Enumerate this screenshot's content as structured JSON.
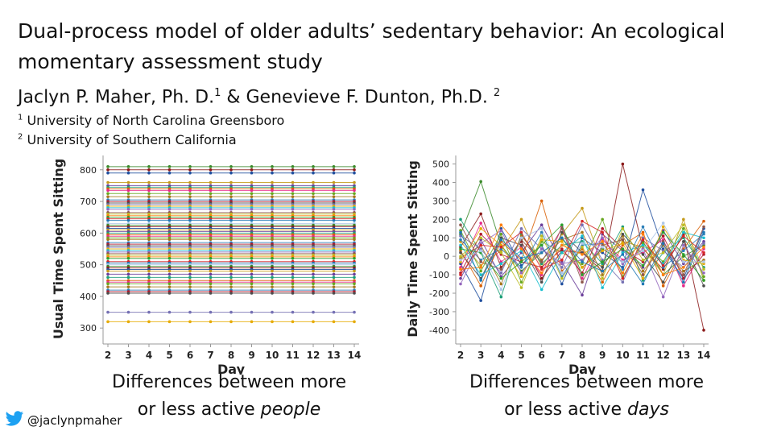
{
  "slide": {
    "title": "Dual-process model of older adults’ sedentary behavior: An ecological momentary assessment study",
    "authors": {
      "author1": "Jaclyn P. Maher, Ph. D.",
      "sup1": "1",
      "separator": " & ",
      "author2": "Genevieve F. Dunton, Ph.D.",
      "sup2": "2"
    },
    "affiliations": [
      {
        "sup": "1",
        "text": "University of North Carolina Greensboro"
      },
      {
        "sup": "2",
        "text": "University of Southern California"
      }
    ],
    "captions": {
      "left_line1": "Differences between more",
      "left_line2_pre": "or less active ",
      "left_line2_em": "people",
      "right_line1": "Differences between more",
      "right_line2_pre": "or less active ",
      "right_line2_em": "days"
    },
    "twitter_handle": "@jaclynpmaher",
    "icons": {
      "twitter": "twitter-bird-icon"
    },
    "colors": {
      "twitter": "#1da1f2"
    }
  },
  "chart_data": [
    {
      "type": "line",
      "xlabel": "Day",
      "ylabel": "Usual Time Spent Sitting",
      "x": [
        2,
        3,
        4,
        5,
        6,
        7,
        8,
        9,
        10,
        11,
        12,
        13,
        14
      ],
      "yticks": [
        300,
        400,
        500,
        600,
        700,
        800
      ],
      "ylim": [
        270,
        830
      ],
      "grid": false,
      "series_levels": [
        810,
        800,
        790,
        760,
        750,
        745,
        740,
        735,
        725,
        715,
        705,
        700,
        695,
        690,
        685,
        680,
        675,
        665,
        660,
        655,
        650,
        645,
        640,
        630,
        625,
        620,
        615,
        610,
        605,
        600,
        595,
        590,
        585,
        580,
        570,
        565,
        560,
        555,
        550,
        545,
        540,
        535,
        530,
        525,
        520,
        510,
        505,
        500,
        495,
        490,
        485,
        480,
        470,
        460,
        450,
        445,
        440,
        430,
        420,
        415,
        410,
        350,
        320
      ],
      "note": "each series is constant across days"
    },
    {
      "type": "line",
      "xlabel": "Day",
      "ylabel": "Daily Time Spent Sitting",
      "x": [
        2,
        3,
        4,
        5,
        6,
        7,
        8,
        9,
        10,
        11,
        12,
        13,
        14
      ],
      "yticks": [
        -400,
        -300,
        -200,
        -100,
        0,
        100,
        200,
        300,
        400,
        500
      ],
      "ylim": [
        -440,
        520
      ],
      "grid": false,
      "series": [
        {
          "values": [
            120,
            405,
            60,
            -80,
            20,
            100,
            -60,
            40,
            -30,
            80,
            -100,
            0,
            60
          ]
        },
        {
          "values": [
            50,
            230,
            -60,
            80,
            -120,
            30,
            20,
            -80,
            500,
            40,
            -70,
            120,
            -400
          ]
        },
        {
          "values": [
            -40,
            -240,
            150,
            -50,
            60,
            -150,
            100,
            20,
            -60,
            360,
            40,
            -120,
            150
          ]
        },
        {
          "values": [
            80,
            -50,
            30,
            200,
            -60,
            120,
            260,
            -50,
            80,
            50,
            -100,
            200,
            -130
          ]
        },
        {
          "values": [
            -120,
            90,
            -110,
            20,
            170,
            -30,
            -210,
            120,
            30,
            -60,
            140,
            -40,
            80
          ]
        },
        {
          "values": [
            200,
            20,
            -220,
            120,
            -40,
            60,
            80,
            -40,
            160,
            -130,
            20,
            100,
            -60
          ]
        },
        {
          "values": [
            30,
            -160,
            80,
            -20,
            300,
            -80,
            40,
            -140,
            60,
            130,
            -160,
            40,
            190
          ]
        },
        {
          "values": [
            -60,
            180,
            -30,
            50,
            -100,
            160,
            -120,
            90,
            -20,
            20,
            90,
            -160,
            40
          ]
        },
        {
          "values": [
            140,
            -80,
            120,
            -140,
            80,
            20,
            -40,
            200,
            -110,
            70,
            -30,
            150,
            -110
          ]
        },
        {
          "values": [
            -10,
            60,
            -150,
            110,
            -20,
            90,
            130,
            -100,
            110,
            -80,
            60,
            -80,
            -20
          ]
        },
        {
          "values": [
            90,
            -20,
            40,
            -60,
            130,
            -110,
            60,
            70,
            -70,
            160,
            -60,
            30,
            120
          ]
        },
        {
          "values": [
            -90,
            120,
            10,
            -30,
            -60,
            40,
            -90,
            150,
            40,
            -30,
            110,
            -120,
            10
          ]
        },
        {
          "values": [
            20,
            -120,
            100,
            60,
            -140,
            130,
            20,
            -60,
            120,
            10,
            -140,
            80,
            -160
          ]
        },
        {
          "values": [
            110,
            40,
            -90,
            150,
            40,
            -60,
            170,
            -20,
            -140,
            100,
            30,
            -60,
            70
          ]
        },
        {
          "values": [
            -30,
            150,
            60,
            -110,
            90,
            80,
            -60,
            30,
            70,
            -120,
            160,
            -20,
            -40
          ]
        },
        {
          "values": [
            60,
            -100,
            -40,
            30,
            -180,
            20,
            110,
            -170,
            20,
            60,
            -40,
            130,
            100
          ]
        },
        {
          "values": [
            -150,
            70,
            140,
            -90,
            40,
            -40,
            -20,
            100,
            -40,
            40,
            -220,
            60,
            -90
          ]
        },
        {
          "values": [
            170,
            -30,
            -70,
            90,
            -30,
            150,
            -140,
            60,
            90,
            -100,
            80,
            -100,
            160
          ]
        },
        {
          "values": [
            0,
            100,
            20,
            -170,
            110,
            -120,
            50,
            -120,
            150,
            -20,
            20,
            170,
            -70
          ]
        },
        {
          "values": [
            -70,
            -60,
            170,
            40,
            -90,
            60,
            10,
            80,
            -90,
            120,
            -100,
            -60,
            50
          ]
        },
        {
          "values": [
            40,
            20,
            -120,
            -30,
            60,
            170,
            -100,
            -30,
            40,
            -50,
            130,
            10,
            -130
          ]
        },
        {
          "values": [
            -100,
            60,
            50,
            130,
            -70,
            -20,
            190,
            130,
            -120,
            90,
            -50,
            110,
            20
          ]
        },
        {
          "values": [
            130,
            -130,
            90,
            -10,
            20,
            100,
            -30,
            -80,
            10,
            -150,
            70,
            -140,
            130
          ]
        },
        {
          "values": [
            -20,
            30,
            -180,
            100,
            150,
            -90,
            70,
            50,
            -30,
            30,
            180,
            -30,
            -30
          ]
        }
      ]
    }
  ]
}
